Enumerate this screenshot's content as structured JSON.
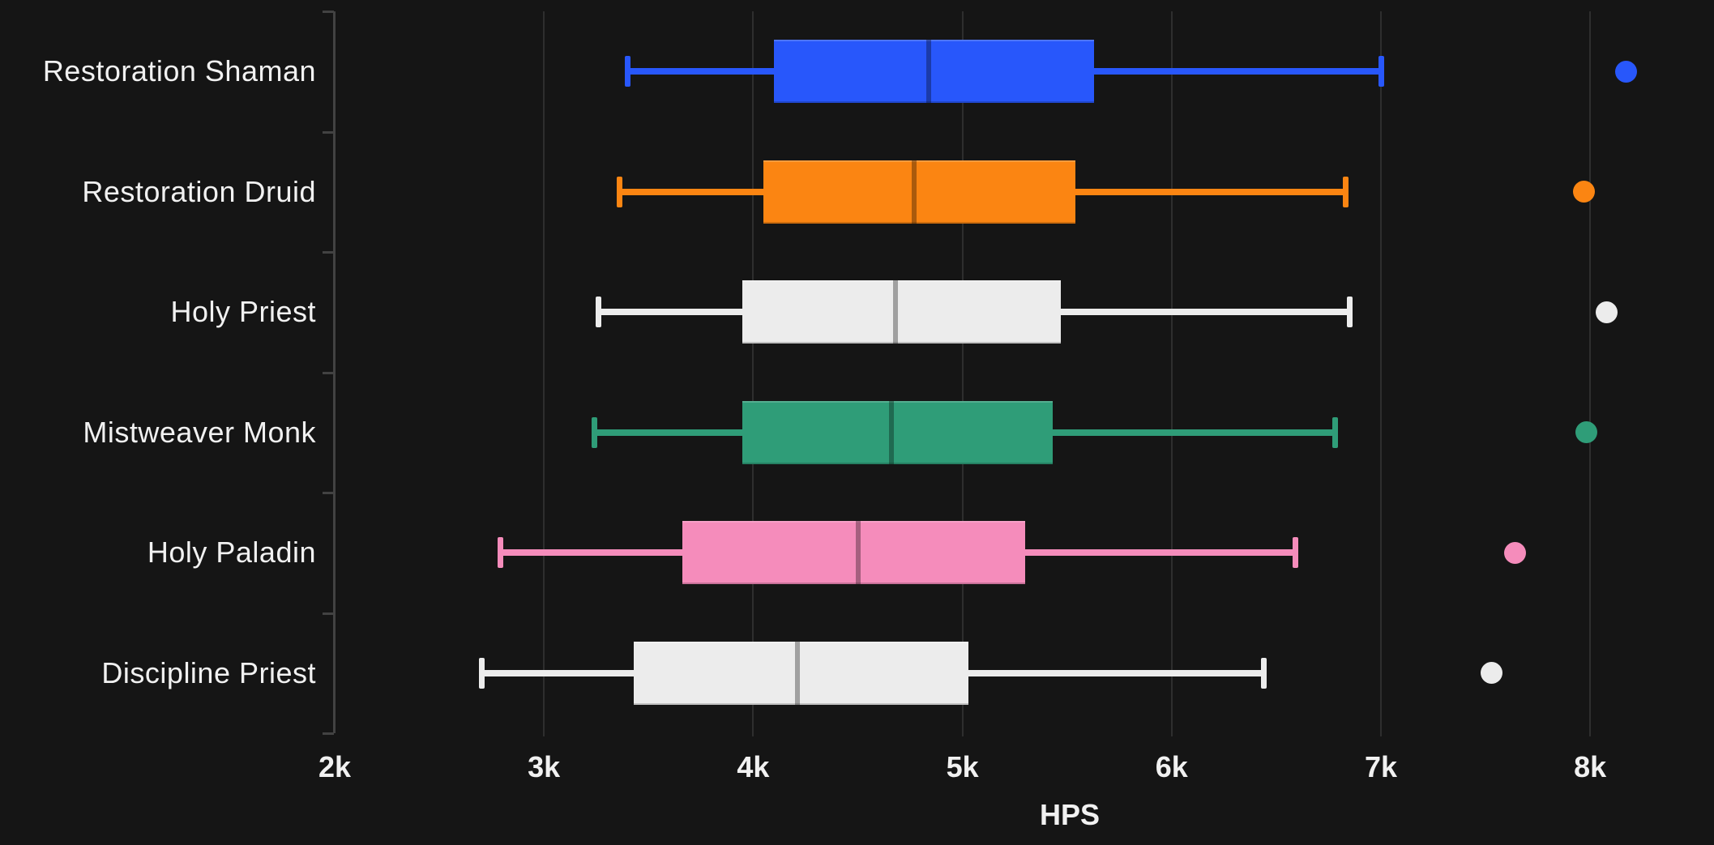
{
  "chart_data": {
    "type": "box",
    "orientation": "horizontal",
    "title": "",
    "xlabel": "HPS",
    "x_tick_labels": [
      "2k",
      "3k",
      "4k",
      "5k",
      "6k",
      "7k",
      "8k"
    ],
    "x_tick_values": [
      2000,
      3000,
      4000,
      5000,
      6000,
      7000,
      8000
    ],
    "xlim": [
      2000,
      8600
    ],
    "grid": "vertical-only",
    "legend": "none",
    "categories": [
      "Restoration Shaman",
      "Restoration Druid",
      "Holy Priest",
      "Mistweaver Monk",
      "Holy Paladin",
      "Discipline Priest"
    ],
    "series": [
      {
        "name": "Restoration Shaman",
        "color": "#2857fb",
        "min": 3400,
        "q1": 4100,
        "median": 4840,
        "q3": 5630,
        "max": 7000,
        "outliers": [
          8170
        ]
      },
      {
        "name": "Restoration Druid",
        "color": "#fb8512",
        "min": 3360,
        "q1": 4050,
        "median": 4770,
        "q3": 5540,
        "max": 6830,
        "outliers": [
          7970
        ]
      },
      {
        "name": "Holy Priest",
        "color": "#ececec",
        "min": 3260,
        "q1": 3950,
        "median": 4680,
        "q3": 5470,
        "max": 6850,
        "outliers": [
          8080
        ]
      },
      {
        "name": "Mistweaver Monk",
        "color": "#2f9d78",
        "min": 3240,
        "q1": 3950,
        "median": 4660,
        "q3": 5430,
        "max": 6780,
        "outliers": [
          7980
        ]
      },
      {
        "name": "Holy Paladin",
        "color": "#f58cbb",
        "min": 2790,
        "q1": 3660,
        "median": 4500,
        "q3": 5300,
        "max": 6590,
        "outliers": [
          7640
        ]
      },
      {
        "name": "Discipline Priest",
        "color": "#ececec",
        "min": 2700,
        "q1": 3430,
        "median": 4210,
        "q3": 5030,
        "max": 6440,
        "outliers": [
          7530
        ]
      }
    ],
    "colors": {
      "background": "#151515",
      "gridline": "#2e2e2e",
      "axis": "#424242",
      "text": "#f1f1f1"
    }
  }
}
